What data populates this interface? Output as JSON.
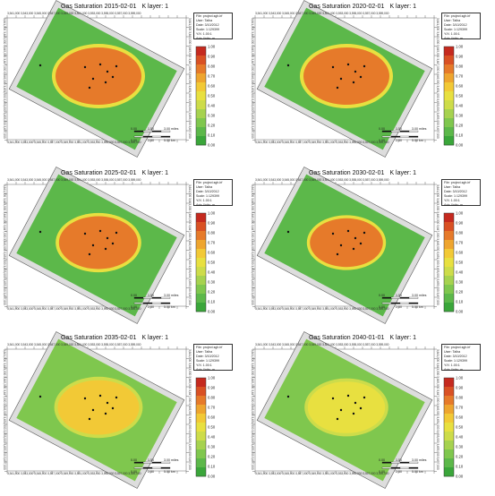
{
  "chart_data": [
    {
      "type": "heatmap",
      "title": "Gas Saturation 2015-02-01",
      "layer_label": "K layer: 1",
      "info": [
        "File: project.sgh.irf",
        "User: Talha",
        "Date: 3/10/2012",
        "Scale: 1:129399",
        "Y/X: 1.00:1",
        "Axis Units: m"
      ],
      "scale_bar": {
        "left": "0.00",
        "mid": "1.50",
        "right": "3.00 miles",
        "left2": "0.00",
        "mid2": "2.50",
        "right2": "5.00 km"
      },
      "x_tick_labels": "3,541,000 3,543,000 3,545,000 3,547,000 3,549,000 3,551,000 3,553,000 3,555,000 3,557,000 3,559,000",
      "y_tick_labels": "3,641,000 3,643,000 3,645,000 3,647,000 3,649,000 3,651,000 3,653,000 3,655,000 3,657,000",
      "colorbar": {
        "min": 0.0,
        "max": 1.0,
        "ticks": [
          "1.00",
          "0.90",
          "0.80",
          "0.70",
          "0.60",
          "0.50",
          "0.40",
          "0.30",
          "0.20",
          "0.10",
          "0.00"
        ]
      },
      "plume": {
        "core_saturation": 0.8,
        "background_saturation": 0.1,
        "extent": 1.0
      }
    },
    {
      "type": "heatmap",
      "title": "Gas Saturation 2020-02-01",
      "layer_label": "K layer: 1",
      "info": [
        "File: project.sgh.irf",
        "User: Talha",
        "Date: 3/10/2012",
        "Scale: 1:129399",
        "Y/X: 1.00:1",
        "Axis Units: m"
      ],
      "scale_bar": {
        "left": "0.00",
        "mid": "1.50",
        "right": "3.00 miles",
        "left2": "0.00",
        "mid2": "2.50",
        "right2": "5.00 km"
      },
      "x_tick_labels": "3,541,000 3,543,000 3,545,000 3,547,000 3,549,000 3,551,000 3,553,000 3,555,000 3,557,000 3,559,000",
      "y_tick_labels": "3,641,000 3,643,000 3,645,000 3,647,000 3,649,000 3,651,000 3,653,000 3,655,000 3,657,000",
      "colorbar": {
        "min": 0.0,
        "max": 1.0,
        "ticks": [
          "1.00",
          "0.90",
          "0.80",
          "0.70",
          "0.60",
          "0.50",
          "0.40",
          "0.30",
          "0.20",
          "0.10",
          "0.00"
        ]
      },
      "plume": {
        "core_saturation": 0.8,
        "background_saturation": 0.1,
        "extent": 1.0
      }
    },
    {
      "type": "heatmap",
      "title": "Gas Saturation 2025-02-01",
      "layer_label": "K layer: 1",
      "info": [
        "File: project.sgh.irf",
        "User: Talha",
        "Date: 3/10/2012",
        "Scale: 1:129399",
        "Y/X: 1.00:1",
        "Axis Units: m"
      ],
      "scale_bar": {
        "left": "0.00",
        "mid": "1.50",
        "right": "3.00 miles",
        "left2": "0.00",
        "mid2": "2.50",
        "right2": "5.00 km"
      },
      "x_tick_labels": "3,541,000 3,543,000 3,545,000 3,547,000 3,549,000 3,551,000 3,553,000 3,555,000 3,557,000 3,559,000",
      "y_tick_labels": "3,641,000 3,643,000 3,645,000 3,647,000 3,649,000 3,651,000 3,653,000 3,655,000 3,657,000",
      "colorbar": {
        "min": 0.0,
        "max": 1.0,
        "ticks": [
          "1.00",
          "0.90",
          "0.80",
          "0.70",
          "0.60",
          "0.50",
          "0.40",
          "0.30",
          "0.20",
          "0.10",
          "0.00"
        ]
      },
      "plume": {
        "core_saturation": 0.8,
        "background_saturation": 0.1,
        "extent": 0.92
      }
    },
    {
      "type": "heatmap",
      "title": "Gas Saturation 2030-02-01",
      "layer_label": "K layer: 1",
      "info": [
        "File: project.sgh.irf",
        "User: Talha",
        "Date: 3/10/2012",
        "Scale: 1:129399",
        "Y/X: 1.00:1",
        "Axis Units: m"
      ],
      "scale_bar": {
        "left": "0.00",
        "mid": "1.50",
        "right": "3.00 miles",
        "left2": "0.00",
        "mid2": "2.50",
        "right2": "5.00 km"
      },
      "x_tick_labels": "3,541,000 3,543,000 3,545,000 3,547,000 3,549,000 3,551,000 3,553,000 3,555,000 3,557,000 3,559,000",
      "y_tick_labels": "3,641,000 3,643,000 3,645,000 3,647,000 3,649,000 3,651,000 3,653,000 3,655,000 3,657,000",
      "colorbar": {
        "min": 0.0,
        "max": 1.0,
        "ticks": [
          "1.00",
          "0.90",
          "0.80",
          "0.70",
          "0.60",
          "0.50",
          "0.40",
          "0.30",
          "0.20",
          "0.10",
          "0.00"
        ]
      },
      "plume": {
        "core_saturation": 0.8,
        "background_saturation": 0.1,
        "extent": 0.85
      }
    },
    {
      "type": "heatmap",
      "title": "Gas Saturation 2035-02-01",
      "layer_label": "K layer: 1",
      "info": [
        "File: project.sgh.irf",
        "User: Talha",
        "Date: 3/10/2012",
        "Scale: 1:129399",
        "Y/X: 1.00:1",
        "Axis Units: m"
      ],
      "scale_bar": {
        "left": "0.00",
        "mid": "1.50",
        "right": "3.00 miles",
        "left2": "0.00",
        "mid2": "2.50",
        "right2": "5.00 km"
      },
      "x_tick_labels": "3,541,000 3,543,000 3,545,000 3,547,000 3,549,000 3,551,000 3,553,000 3,555,000 3,557,000 3,559,000",
      "y_tick_labels": "3,641,000 3,643,000 3,645,000 3,647,000 3,649,000 3,651,000 3,653,000 3,655,000 3,657,000",
      "colorbar": {
        "min": 0.0,
        "max": 1.0,
        "ticks": [
          "1.00",
          "0.90",
          "0.80",
          "0.70",
          "0.60",
          "0.50",
          "0.40",
          "0.30",
          "0.20",
          "0.10",
          "0.00"
        ]
      },
      "plume": {
        "core_saturation": 0.55,
        "background_saturation": 0.15,
        "extent": 0.95
      }
    },
    {
      "type": "heatmap",
      "title": "Gas Saturation 2040-01-01",
      "layer_label": "K layer: 1",
      "info": [
        "File: project.sgh.irf",
        "User: Talha",
        "Date: 3/10/2012",
        "Scale: 1:129399",
        "Y/X: 1.00:1",
        "Axis Units: m"
      ],
      "scale_bar": {
        "left": "0.00",
        "mid": "1.50",
        "right": "3.00 miles",
        "left2": "0.00",
        "mid2": "2.50",
        "right2": "5.00 km"
      },
      "x_tick_labels": "3,541,000 3,543,000 3,545,000 3,547,000 3,549,000 3,551,000 3,553,000 3,555,000 3,557,000 3,559,000",
      "y_tick_labels": "3,641,000 3,643,000 3,645,000 3,647,000 3,649,000 3,651,000 3,653,000 3,655,000 3,657,000",
      "colorbar": {
        "min": 0.0,
        "max": 1.0,
        "ticks": [
          "1.00",
          "0.90",
          "0.80",
          "0.70",
          "0.60",
          "0.50",
          "0.40",
          "0.30",
          "0.20",
          "0.10",
          "0.00"
        ]
      },
      "plume": {
        "core_saturation": 0.5,
        "background_saturation": 0.15,
        "extent": 0.9
      }
    }
  ],
  "colorscale": [
    "#3aa63a",
    "#5cb84a",
    "#7fc74e",
    "#a6d24f",
    "#cddc4a",
    "#e8e040",
    "#f2c936",
    "#eea52f",
    "#e67a2a",
    "#d95124",
    "#c52a1f"
  ]
}
